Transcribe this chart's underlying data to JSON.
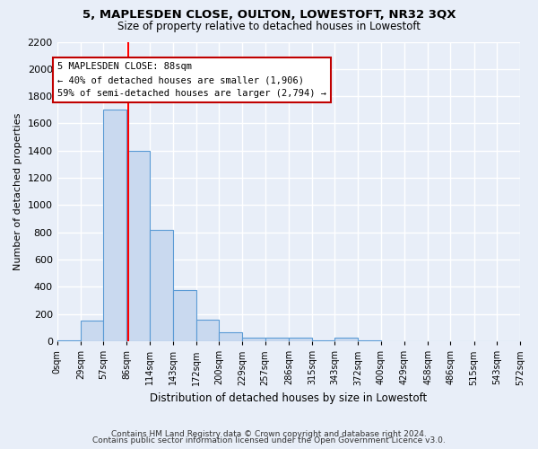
{
  "title": "5, MAPLESDEN CLOSE, OULTON, LOWESTOFT, NR32 3QX",
  "subtitle": "Size of property relative to detached houses in Lowestoft",
  "xlabel": "Distribution of detached houses by size in Lowestoft",
  "ylabel": "Number of detached properties",
  "bin_edges": [
    0,
    29,
    57,
    86,
    114,
    143,
    172,
    200,
    229,
    257,
    286,
    315,
    343,
    372,
    400,
    429,
    458,
    486,
    515,
    543,
    572
  ],
  "bar_heights": [
    10,
    155,
    1700,
    1400,
    820,
    380,
    160,
    65,
    30,
    30,
    30,
    5,
    30,
    5,
    0,
    0,
    0,
    0,
    0,
    0
  ],
  "bar_color": "#c9d9ef",
  "bar_edgecolor": "#5b9bd5",
  "red_line_x": 88,
  "annotation_title": "5 MAPLESDEN CLOSE: 88sqm",
  "annotation_line1": "← 40% of detached houses are smaller (1,906)",
  "annotation_line2": "59% of semi-detached houses are larger (2,794) →",
  "annotation_box_color": "#ffffff",
  "annotation_box_edgecolor": "#c00000",
  "ylim": [
    0,
    2200
  ],
  "yticks": [
    0,
    200,
    400,
    600,
    800,
    1000,
    1200,
    1400,
    1600,
    1800,
    2000,
    2200
  ],
  "plot_bg_color": "#e8eef8",
  "fig_bg_color": "#e8eef8",
  "grid_color": "#ffffff",
  "footer_line1": "Contains HM Land Registry data © Crown copyright and database right 2024.",
  "footer_line2": "Contains public sector information licensed under the Open Government Licence v3.0."
}
